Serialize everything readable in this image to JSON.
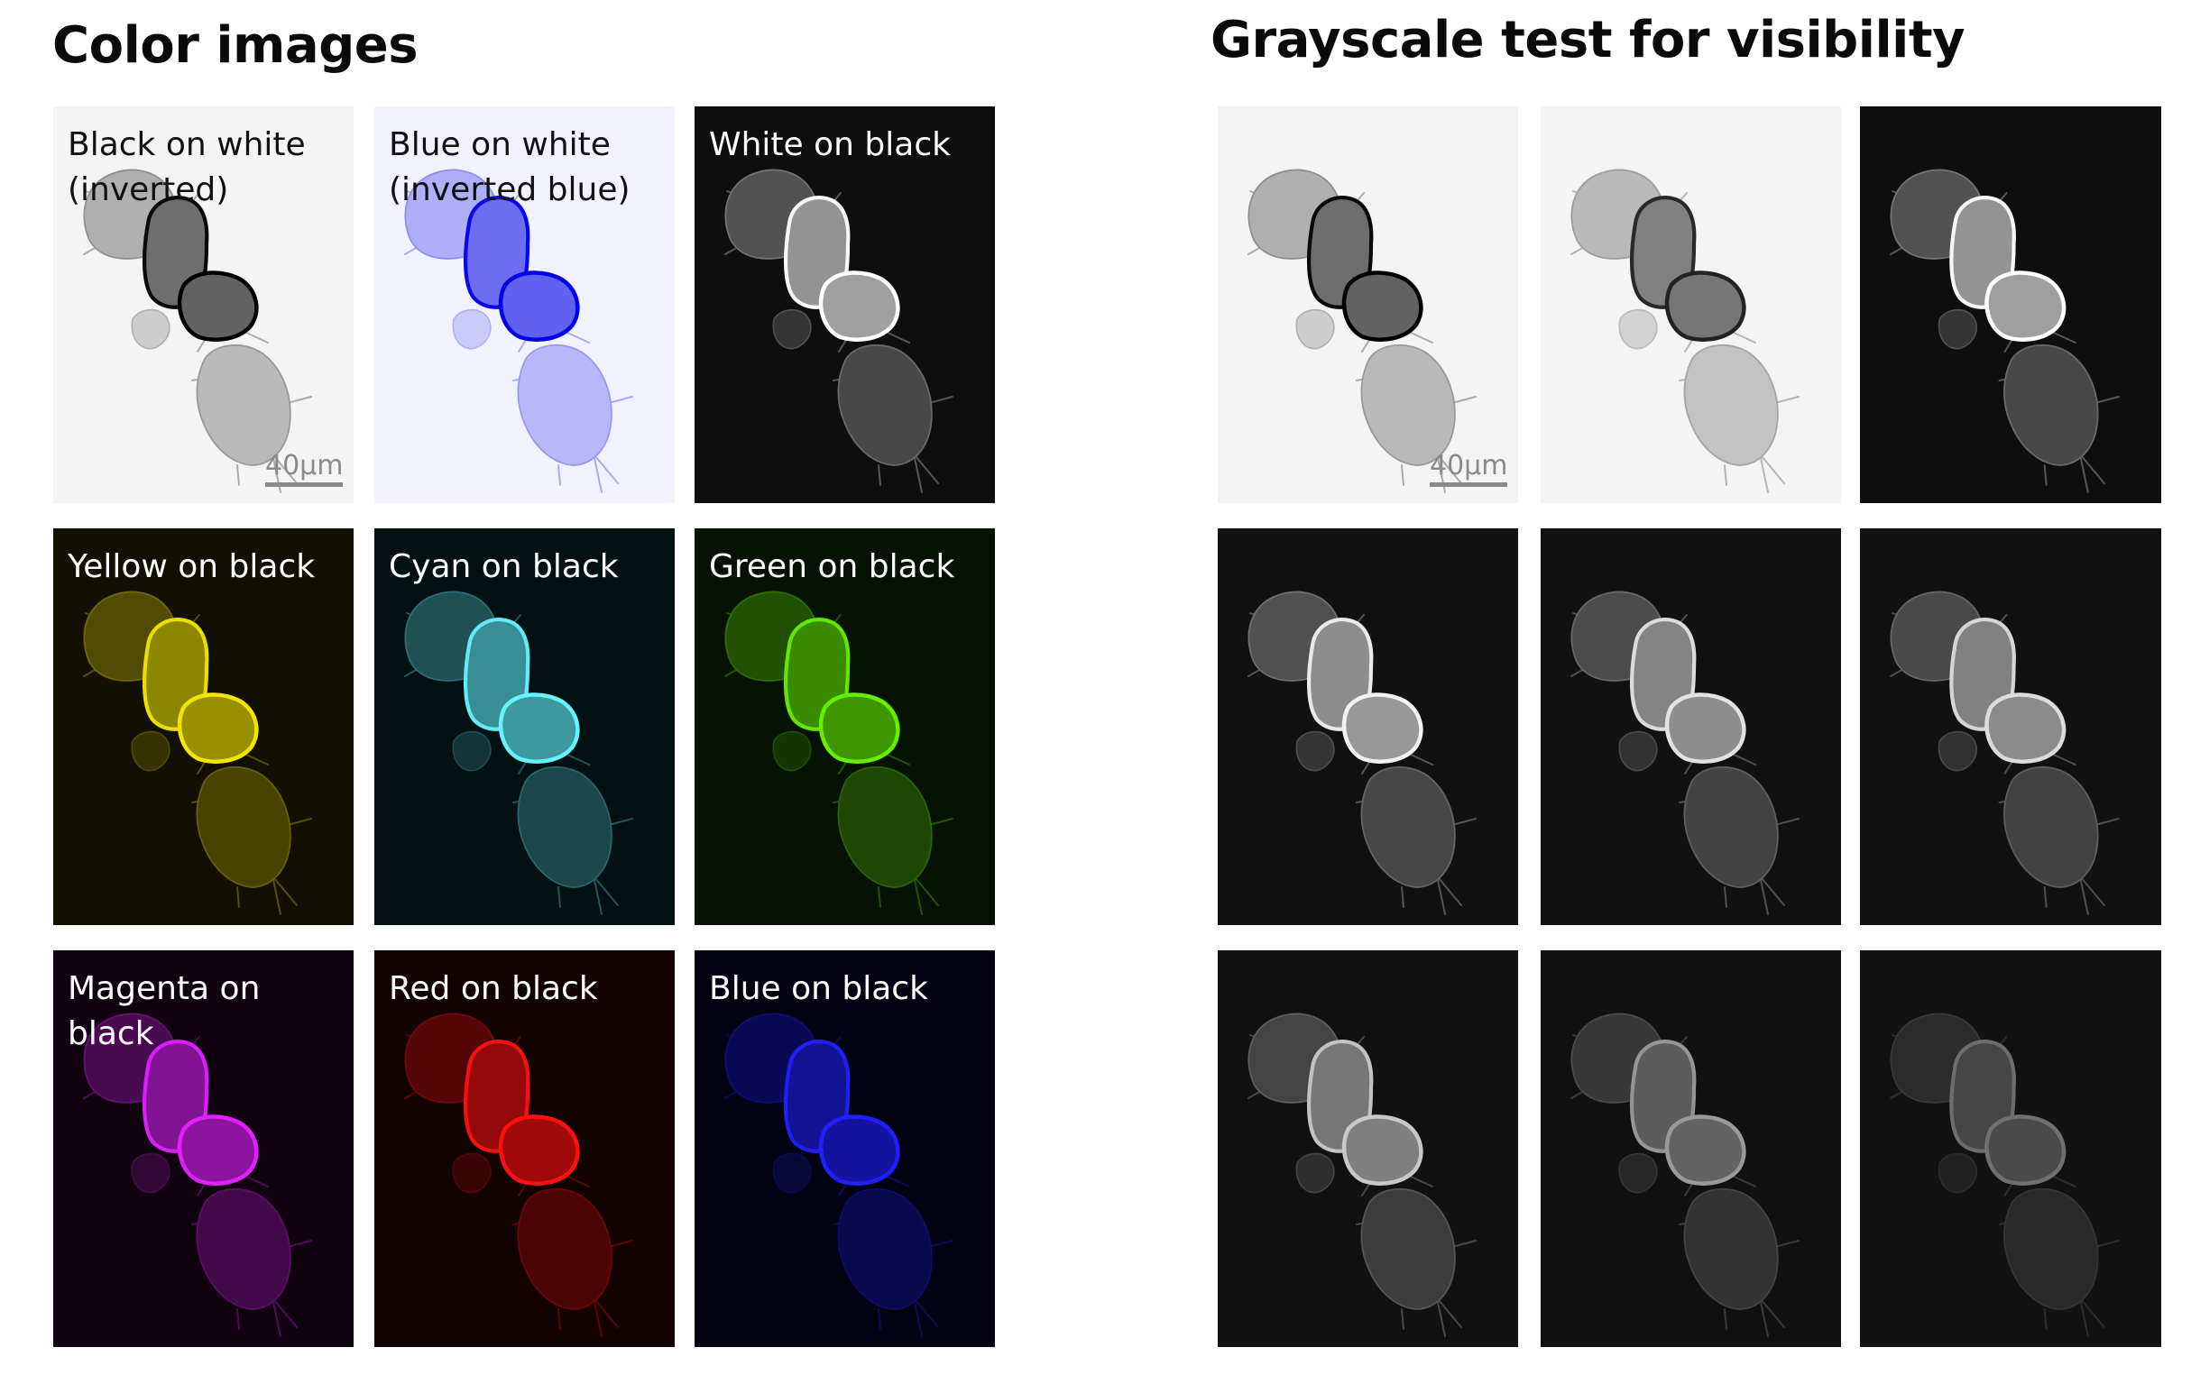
{
  "titles": {
    "color": "Color images",
    "gray": "Grayscale test for visibility"
  },
  "scale_bar": "40µm",
  "color_panels": [
    {
      "label": "Black on white\n(inverted)",
      "bg": "#f4f4f4",
      "cell": "#000000",
      "label_color": "#111111",
      "inverted": true,
      "scale": true
    },
    {
      "label": "Blue on white\n(inverted blue)",
      "bg": "#f2f2ff",
      "cell": "#0000e8",
      "label_color": "#111111",
      "inverted": true,
      "scale": false
    },
    {
      "label": "White on black",
      "bg": "#0e0e0e",
      "cell": "#ffffff",
      "label_color": "#ffffff",
      "inverted": false,
      "scale": false
    },
    {
      "label": "Yellow  on black",
      "bg": "#121003",
      "cell": "#f2e600",
      "label_color": "#ffffff",
      "inverted": false,
      "scale": false
    },
    {
      "label": "Cyan  on black",
      "bg": "#031112",
      "cell": "#66f2ff",
      "label_color": "#ffffff",
      "inverted": false,
      "scale": false
    },
    {
      "label": "Green on black",
      "bg": "#061203",
      "cell": "#66ee00",
      "label_color": "#ffffff",
      "inverted": false,
      "scale": false
    },
    {
      "label": "Magenta on black",
      "bg": "#10020f",
      "cell": "#e020ff",
      "label_color": "#ffffff",
      "inverted": false,
      "scale": false
    },
    {
      "label": "Red on black",
      "bg": "#120202",
      "cell": "#ff1010",
      "label_color": "#ffffff",
      "inverted": false,
      "scale": false
    },
    {
      "label": "Blue on black",
      "bg": "#020212",
      "cell": "#2020ff",
      "label_color": "#ffffff",
      "inverted": false,
      "scale": false
    }
  ],
  "gray_panels": [
    {
      "bg": "#f4f4f4",
      "cell": "#000000",
      "inverted": true,
      "scale": true
    },
    {
      "bg": "#f4f4f4",
      "cell": "#222222",
      "inverted": true,
      "scale": false
    },
    {
      "bg": "#0e0e0e",
      "cell": "#ffffff",
      "inverted": false,
      "scale": false
    },
    {
      "bg": "#111111",
      "cell": "#f2f2f2",
      "inverted": false,
      "scale": false
    },
    {
      "bg": "#111111",
      "cell": "#e2e2e2",
      "inverted": false,
      "scale": false
    },
    {
      "bg": "#111111",
      "cell": "#dcdcdc",
      "inverted": false,
      "scale": false
    },
    {
      "bg": "#111111",
      "cell": "#c8c8c8",
      "inverted": false,
      "scale": false
    },
    {
      "bg": "#111111",
      "cell": "#9a9a9a",
      "inverted": false,
      "scale": false
    },
    {
      "bg": "#121212",
      "cell": "#707070",
      "inverted": false,
      "scale": false
    }
  ]
}
